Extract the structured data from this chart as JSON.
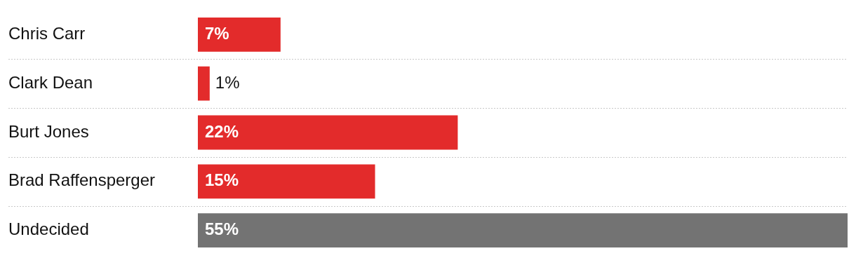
{
  "chart_data": {
    "type": "bar",
    "orientation": "horizontal",
    "categories": [
      "Chris Carr",
      "Clark Dean",
      "Burt Jones",
      "Brad Raffensperger",
      "Undecided"
    ],
    "values": [
      7,
      1,
      22,
      15,
      55
    ],
    "colors": [
      "#e32b2b",
      "#e32b2b",
      "#e32b2b",
      "#e32b2b",
      "#737373"
    ],
    "value_labels": [
      "7%",
      "1%",
      "22%",
      "15%",
      "55%"
    ],
    "xlim": [
      0,
      55
    ],
    "tick_labels": "y",
    "grid": "y",
    "legend": false
  }
}
